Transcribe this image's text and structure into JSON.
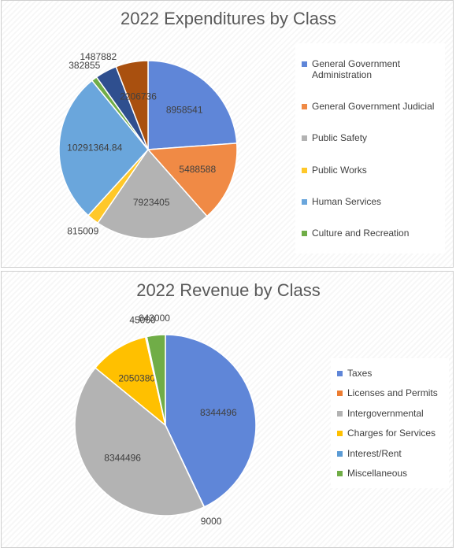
{
  "chart_data": [
    {
      "type": "pie",
      "title": "2022 Expenditures by Class",
      "categories": [
        "General Government Administration",
        "General Government Judicial",
        "Public Safety",
        "Public Works",
        "Human Services",
        "Culture and Recreation",
        null,
        null
      ],
      "values": [
        8958541,
        5488588,
        7923405,
        815009,
        10291364.84,
        382855,
        1487882,
        2206736
      ],
      "colors": [
        "#5f86d8",
        "#f08a45",
        "#b3b3b3",
        "#ffc829",
        "#6aa6dc",
        "#70ad47",
        "#2f4f8f",
        "#a9500f"
      ]
    },
    {
      "type": "pie",
      "title": "2022  Revenue by Class",
      "categories": [
        "Taxes",
        "Licenses and Permits",
        "Intergovernmental",
        "Charges for Services",
        "Interest/Rent",
        "Miscellaneous"
      ],
      "values": [
        8344496,
        9000,
        8344496,
        2050380,
        45000,
        643000
      ],
      "colors": [
        "#5f86d8",
        "#ed7d31",
        "#b3b3b3",
        "#ffc000",
        "#5b9bd5",
        "#70ad47"
      ]
    }
  ]
}
